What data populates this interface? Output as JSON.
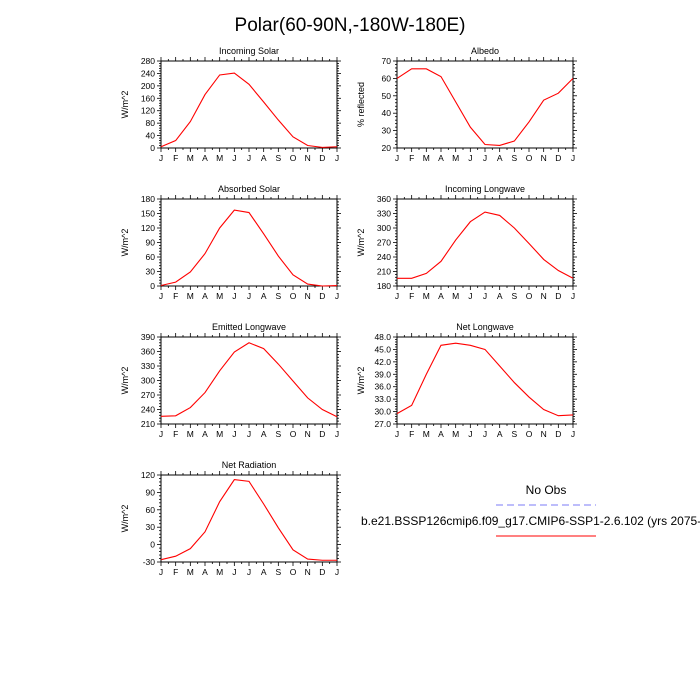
{
  "figure": {
    "title": "Polar(60-90N,-180W-180E)",
    "months": [
      "J",
      "F",
      "M",
      "A",
      "M",
      "J",
      "J",
      "A",
      "S",
      "O",
      "N",
      "D",
      "J"
    ]
  },
  "legend": {
    "obs_label": "No Obs",
    "case_label": "b.e21.BSSP126cmip6.f09_g17.CMIP6-SSP1-2.6.102 (yrs 2075-",
    "obs_color": "#7b7bf7",
    "case_color": "#ff0000"
  },
  "chart_data": [
    {
      "type": "line",
      "title": "Incoming Solar",
      "ylabel": "W/m^2",
      "xlabel": "",
      "ylim": [
        0,
        280
      ],
      "yticks": [
        0,
        40,
        80,
        120,
        160,
        200,
        240,
        280
      ],
      "ytick_labels": [
        "0",
        "40",
        "80",
        "120",
        "160",
        "200",
        "240",
        "280"
      ],
      "x": [
        1,
        2,
        3,
        4,
        5,
        6,
        7,
        8,
        9,
        10,
        11,
        12,
        13
      ],
      "series": [
        {
          "name": "b.e21.BSSP126cmip6.f09_g17.CMIP6-SSP1-2.6.102",
          "values": [
            4,
            24,
            85,
            172,
            235,
            241,
            205,
            148,
            90,
            36,
            8,
            2,
            4
          ]
        }
      ]
    },
    {
      "type": "line",
      "title": "Albedo",
      "ylabel": "% reflected",
      "xlabel": "",
      "ylim": [
        20,
        70
      ],
      "yticks": [
        20,
        30,
        40,
        50,
        60,
        70
      ],
      "ytick_labels": [
        "20",
        "30",
        "40",
        "50",
        "60",
        "70"
      ],
      "x": [
        1,
        2,
        3,
        4,
        5,
        6,
        7,
        8,
        9,
        10,
        11,
        12,
        13
      ],
      "series": [
        {
          "name": "b.e21.BSSP126cmip6.f09_g17.CMIP6-SSP1-2.6.102",
          "values": [
            60,
            65.5,
            65.5,
            61,
            46.5,
            32,
            22,
            21.5,
            24,
            35,
            47.5,
            51.5,
            60
          ]
        }
      ]
    },
    {
      "type": "line",
      "title": "Absorbed Solar",
      "ylabel": "W/m^2",
      "xlabel": "",
      "ylim": [
        0,
        180
      ],
      "yticks": [
        0,
        30,
        60,
        90,
        120,
        150,
        180
      ],
      "ytick_labels": [
        "0",
        "30",
        "60",
        "90",
        "120",
        "150",
        "180"
      ],
      "x": [
        1,
        2,
        3,
        4,
        5,
        6,
        7,
        8,
        9,
        10,
        11,
        12,
        13
      ],
      "series": [
        {
          "name": "b.e21.BSSP126cmip6.f09_g17.CMIP6-SSP1-2.6.102",
          "values": [
            1,
            8,
            29,
            67,
            120,
            157,
            152,
            108,
            62,
            23,
            4,
            0,
            1
          ]
        }
      ]
    },
    {
      "type": "line",
      "title": "Incoming Longwave",
      "ylabel": "W/m^2",
      "xlabel": "",
      "ylim": [
        180,
        360
      ],
      "yticks": [
        180,
        210,
        240,
        270,
        300,
        330,
        360
      ],
      "ytick_labels": [
        "180",
        "210",
        "240",
        "270",
        "300",
        "330",
        "360"
      ],
      "x": [
        1,
        2,
        3,
        4,
        5,
        6,
        7,
        8,
        9,
        10,
        11,
        12,
        13
      ],
      "series": [
        {
          "name": "b.e21.BSSP126cmip6.f09_g17.CMIP6-SSP1-2.6.102",
          "values": [
            196,
            196,
            206,
            231,
            275,
            313,
            333,
            326,
            300,
            268,
            235,
            212,
            196
          ]
        }
      ]
    },
    {
      "type": "line",
      "title": "Emitted Longwave",
      "ylabel": "W/m^2",
      "xlabel": "",
      "ylim": [
        210,
        390
      ],
      "yticks": [
        210,
        240,
        270,
        300,
        330,
        360,
        390
      ],
      "ytick_labels": [
        "210",
        "240",
        "270",
        "300",
        "330",
        "360",
        "390"
      ],
      "x": [
        1,
        2,
        3,
        4,
        5,
        6,
        7,
        8,
        9,
        10,
        11,
        12,
        13
      ],
      "series": [
        {
          "name": "b.e21.BSSP126cmip6.f09_g17.CMIP6-SSP1-2.6.102",
          "values": [
            226,
            227,
            244,
            275,
            320,
            359,
            378,
            366,
            334,
            299,
            264,
            240,
            225
          ]
        }
      ]
    },
    {
      "type": "line",
      "title": "Net Longwave",
      "ylabel": "W/m^2",
      "xlabel": "",
      "ylim": [
        27.0,
        48.0
      ],
      "yticks": [
        27.0,
        30.0,
        33.0,
        36.0,
        39.0,
        42.0,
        45.0,
        48.0
      ],
      "ytick_labels": [
        "27.0",
        "30.0",
        "33.0",
        "36.0",
        "39.0",
        "42.0",
        "45.0",
        "48.0"
      ],
      "x": [
        1,
        2,
        3,
        4,
        5,
        6,
        7,
        8,
        9,
        10,
        11,
        12,
        13
      ],
      "series": [
        {
          "name": "b.e21.BSSP126cmip6.f09_g17.CMIP6-SSP1-2.6.102",
          "values": [
            29.5,
            31.5,
            39.0,
            46.0,
            46.5,
            46.0,
            45.0,
            41.0,
            37.0,
            33.5,
            30.5,
            29.0,
            29.2
          ]
        }
      ]
    },
    {
      "type": "line",
      "title": "Net Radiation",
      "ylabel": "W/m^2",
      "xlabel": "",
      "ylim": [
        -30,
        120
      ],
      "yticks": [
        -30,
        0,
        30,
        60,
        90,
        120
      ],
      "ytick_labels": [
        "-30",
        "0",
        "30",
        "60",
        "90",
        "120"
      ],
      "x": [
        1,
        2,
        3,
        4,
        5,
        6,
        7,
        8,
        9,
        10,
        11,
        12,
        13
      ],
      "series": [
        {
          "name": "b.e21.BSSP126cmip6.f09_g17.CMIP6-SSP1-2.6.102",
          "values": [
            -26,
            -20,
            -7,
            22,
            74,
            112,
            109,
            70,
            29,
            -9,
            -25,
            -27,
            -27
          ]
        }
      ]
    }
  ]
}
